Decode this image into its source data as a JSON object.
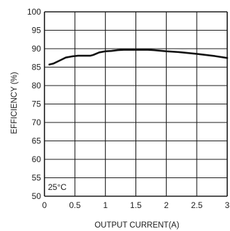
{
  "colors": {
    "curve": "#111111",
    "grid": "#1a1a1a",
    "background": "#ffffff"
  },
  "chart_data": {
    "type": "line",
    "xlabel": "OUTPUT CURRENT(A)",
    "ylabel": "EFFICIENCY (%)",
    "xlim": [
      0,
      3
    ],
    "ylim": [
      50,
      100
    ],
    "x_ticks": [
      "0",
      "0.5",
      "1",
      "1.5",
      "2",
      "2.5",
      "3"
    ],
    "y_ticks": [
      "50",
      "55",
      "60",
      "65",
      "70",
      "75",
      "80",
      "85",
      "90",
      "95",
      "100"
    ],
    "grid": true,
    "annotation": "25°C",
    "series": [
      {
        "x": [
          0.08,
          0.15,
          0.25,
          0.35,
          0.45,
          0.55,
          0.65,
          0.75,
          0.8,
          0.9,
          1.0,
          1.1,
          1.2,
          1.3,
          1.5,
          1.7,
          1.8,
          2.0,
          2.2,
          2.5,
          2.8,
          3.0
        ],
        "values": [
          85.7,
          86.0,
          86.8,
          87.6,
          87.9,
          88.1,
          88.1,
          88.1,
          88.3,
          89.0,
          89.3,
          89.4,
          89.6,
          89.7,
          89.7,
          89.7,
          89.6,
          89.3,
          89.1,
          88.6,
          88.0,
          87.5
        ]
      }
    ]
  }
}
